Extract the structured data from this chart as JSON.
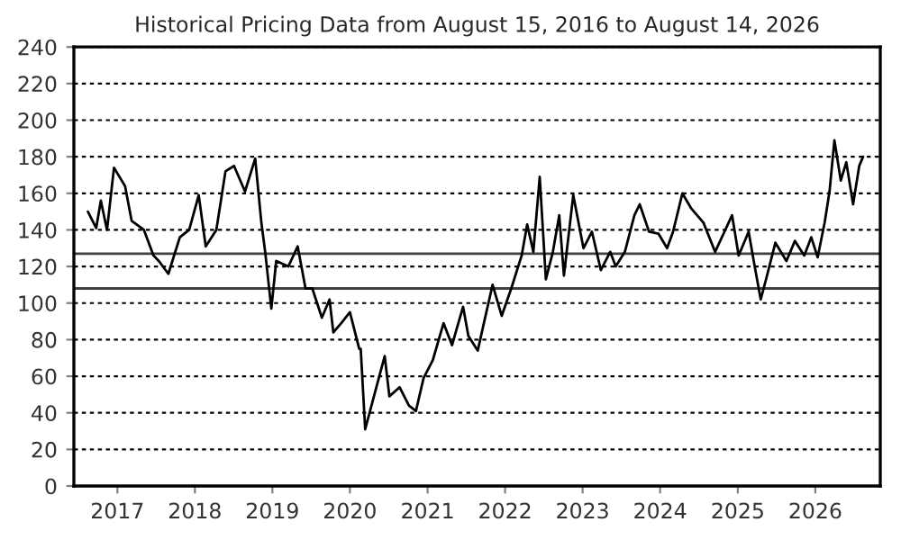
{
  "chart_data": {
    "type": "line",
    "title": "Historical Pricing Data from August 15, 2016 to August 14, 2026",
    "x": [
      "2016-08-15",
      "2016-09-23",
      "2016-10-15",
      "2016-11-13",
      "2016-12-16",
      "2017-02-06",
      "2017-03-09",
      "2017-05-06",
      "2017-06-20",
      "2017-07-15",
      "2017-08-29",
      "2017-10-22",
      "2017-12-05",
      "2018-01-19",
      "2018-02-21",
      "2018-04-12",
      "2018-05-25",
      "2018-07-04",
      "2018-08-25",
      "2018-10-12",
      "2018-11-10",
      "2018-11-28",
      "2018-12-27",
      "2019-01-19",
      "2019-03-17",
      "2019-04-30",
      "2019-06-06",
      "2019-07-08",
      "2019-08-22",
      "2019-09-27",
      "2019-10-15",
      "2019-11-21",
      "2020-01-01",
      "2020-02-14",
      "2020-02-21",
      "2020-03-13",
      "2020-04-30",
      "2020-06-13",
      "2020-07-05",
      "2020-08-22",
      "2020-10-05",
      "2020-11-07",
      "2020-12-13",
      "2021-01-26",
      "2021-03-17",
      "2021-04-26",
      "2021-06-17",
      "2021-07-12",
      "2021-08-25",
      "2021-09-23",
      "2021-11-03",
      "2021-12-16",
      "2022-01-30",
      "2022-03-20",
      "2022-04-15",
      "2022-05-14",
      "2022-06-13",
      "2022-07-12",
      "2022-08-14",
      "2022-09-13",
      "2022-10-05",
      "2022-11-18",
      "2023-01-05",
      "2023-02-14",
      "2023-03-28",
      "2023-05-11",
      "2023-06-06",
      "2023-07-19",
      "2023-09-02",
      "2023-09-27",
      "2023-11-10",
      "2023-12-24",
      "2024-02-03",
      "2024-03-02",
      "2024-04-15",
      "2024-05-25",
      "2024-07-23",
      "2024-09-16",
      "2024-10-30",
      "2024-12-05",
      "2025-01-05",
      "2025-02-21",
      "2025-03-20",
      "2025-04-19",
      "2025-05-14",
      "2025-06-27",
      "2025-08-18",
      "2025-09-27",
      "2025-11-10",
      "2025-12-13",
      "2026-01-12",
      "2026-02-14",
      "2026-03-09",
      "2026-04-01",
      "2026-05-01",
      "2026-05-27",
      "2026-06-28",
      "2026-07-27",
      "2026-08-14"
    ],
    "series": [
      {
        "color": "#000000",
        "values": [
          150,
          141,
          156,
          140,
          174,
          164,
          145,
          140,
          126,
          123,
          116,
          136,
          140,
          159,
          131,
          140,
          172,
          175,
          161,
          179,
          144,
          128,
          97,
          123,
          120,
          131,
          108,
          108,
          92,
          102,
          84,
          89,
          95,
          75,
          75,
          31,
          52,
          71,
          49,
          54,
          44,
          41,
          59,
          69,
          89,
          77,
          98,
          82,
          74,
          89,
          110,
          93,
          108,
          126,
          143,
          128,
          169,
          113,
          128,
          148,
          115,
          159,
          130,
          139,
          118,
          128,
          120,
          128,
          148,
          154,
          139,
          138,
          130,
          139,
          160,
          152,
          144,
          128,
          139,
          148,
          126,
          139,
          121,
          102,
          113,
          133,
          123,
          134,
          126,
          136,
          125,
          144,
          161,
          189,
          167,
          177,
          154,
          175,
          180
        ]
      }
    ],
    "xlim": [
      "2016-06-10",
      "2026-11-03"
    ],
    "xticks": [
      {
        "value": "2017-01-01",
        "label": "2017"
      },
      {
        "value": "2018-01-01",
        "label": "2018"
      },
      {
        "value": "2019-01-01",
        "label": "2019"
      },
      {
        "value": "2020-01-01",
        "label": "2020"
      },
      {
        "value": "2021-01-01",
        "label": "2021"
      },
      {
        "value": "2022-01-01",
        "label": "2022"
      },
      {
        "value": "2023-01-01",
        "label": "2023"
      },
      {
        "value": "2024-01-01",
        "label": "2024"
      },
      {
        "value": "2025-01-01",
        "label": "2025"
      },
      {
        "value": "2026-01-01",
        "label": "2026"
      }
    ],
    "ylim": [
      0,
      240
    ],
    "yticks": [
      0,
      20,
      40,
      60,
      80,
      100,
      120,
      140,
      160,
      180,
      200,
      220,
      240
    ],
    "grid": "y",
    "ref_lines": [
      {
        "axis": "y",
        "value": 127,
        "color": "#404040"
      },
      {
        "axis": "y",
        "value": 108,
        "color": "#404040"
      }
    ],
    "line_style": "solid",
    "legend": false
  }
}
